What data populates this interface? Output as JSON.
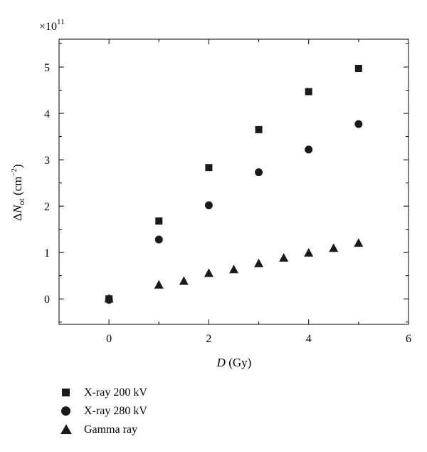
{
  "chart_data": {
    "type": "scatter",
    "xlabel_italic": "D",
    "xlabel_unit": " (Gy)",
    "ylabel_prefix": "Δ",
    "ylabel_var": "N",
    "ylabel_sub": "ot",
    "ylabel_unit": " (cm",
    "ylabel_sup": "−2",
    "ylabel_close": ")",
    "y_multiplier_base": "×10",
    "y_multiplier_exp": "11",
    "xlim": [
      -1,
      6
    ],
    "ylim": [
      -0.55,
      5.6
    ],
    "xticks": [
      0,
      2,
      4,
      6
    ],
    "yticks": [
      0,
      1,
      2,
      3,
      4,
      5
    ],
    "color": "#1a1a1a",
    "series": [
      {
        "name": "X-ray 200 kV",
        "marker": "square",
        "x": [
          0,
          1,
          2,
          3,
          4,
          5
        ],
        "y": [
          0.0,
          1.68,
          2.83,
          3.65,
          4.47,
          4.97
        ]
      },
      {
        "name": "X-ray 280 kV",
        "marker": "circle",
        "x": [
          0,
          1,
          2,
          3,
          4,
          5
        ],
        "y": [
          -0.02,
          1.28,
          2.02,
          2.73,
          3.22,
          3.77
        ]
      },
      {
        "name": "Gamma ray",
        "marker": "triangle",
        "x": [
          0,
          1,
          1.5,
          2,
          2.5,
          3,
          3.5,
          4,
          4.5,
          5
        ],
        "y": [
          0.0,
          0.3,
          0.38,
          0.55,
          0.63,
          0.76,
          0.88,
          0.99,
          1.09,
          1.2
        ]
      }
    ]
  }
}
